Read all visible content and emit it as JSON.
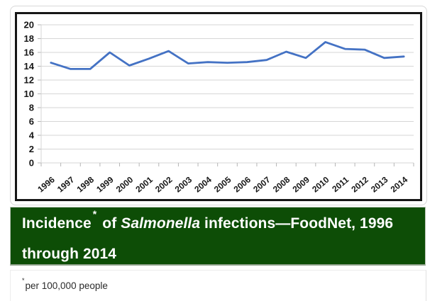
{
  "chart_data": {
    "type": "line",
    "title": "Incidence* of Salmonella infections—FoodNet, 1996 through 2014",
    "xlabel": "",
    "ylabel": "",
    "categories": [
      "1996",
      "1997",
      "1998",
      "1999",
      "2000",
      "2001",
      "2002",
      "2003",
      "2004",
      "2005",
      "2006",
      "2007",
      "2008",
      "2009",
      "2010",
      "2011",
      "2012",
      "2013",
      "2014"
    ],
    "series": [
      {
        "name": "Incidence of Salmonella infections per 100,000 people",
        "color": "#4472c4",
        "values": [
          14.5,
          13.6,
          13.6,
          16.0,
          14.1,
          15.1,
          16.2,
          14.4,
          14.6,
          14.5,
          14.6,
          14.9,
          16.1,
          15.2,
          17.5,
          16.5,
          16.4,
          15.2,
          15.4
        ]
      }
    ],
    "ylim": [
      0,
      20
    ],
    "yticks": [
      0,
      2,
      4,
      6,
      8,
      10,
      12,
      14,
      16,
      18,
      20
    ],
    "grid": true,
    "legend": "none"
  },
  "title_bar": {
    "background": "#0d4d06",
    "text_color": "#ffffff",
    "lead": "Incidence",
    "asterisk": "*",
    "mid": " of ",
    "italic": "Salmonella",
    "line1_tail": " infections—FoodNet, 1996",
    "line2": "through 2014"
  },
  "footnote": {
    "asterisk": "*",
    "text": "per 100,000 people"
  },
  "colors": {
    "line": "#4472c4",
    "grid": "#d6d6d6",
    "tick": "#b5b5b5",
    "axis_text": "#161616",
    "plot_border": "#161616",
    "card_border": "#d8d8d8",
    "title_green": "#0d4d06"
  }
}
